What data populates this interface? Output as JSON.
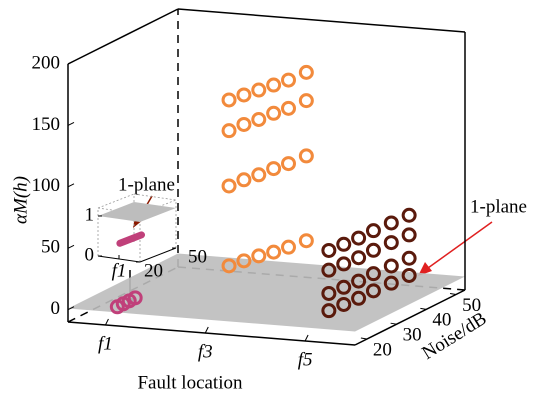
{
  "chart_data": {
    "type": "scatter3d",
    "xlabel": "Fault location",
    "ylabel": "Noise/dB",
    "zlabel": "αM(h)",
    "xlim": [
      0.25,
      6
    ],
    "xticks": [
      {
        "value": 1,
        "label": "f1"
      },
      {
        "value": 3,
        "label": "f3"
      },
      {
        "value": 5,
        "label": "f5"
      }
    ],
    "ylim": [
      16,
      53
    ],
    "yticks": [
      20,
      30,
      40,
      50
    ],
    "zlim": [
      -10,
      200
    ],
    "zticks": [
      0,
      50,
      100,
      150,
      200
    ],
    "plane": {
      "z": 1,
      "color": "#bdbdbd"
    },
    "series": [
      {
        "color": "#f28a3c",
        "x": [
          3,
          3,
          3,
          3,
          3,
          3
        ],
        "y": [
          24,
          29,
          34,
          39,
          44,
          50
        ],
        "z": [
          170,
          168,
          166,
          164,
          162,
          161
        ]
      },
      {
        "color": "#f28a3c",
        "x": [
          3,
          3,
          3,
          3,
          3,
          3
        ],
        "y": [
          24,
          29,
          34,
          39,
          44,
          50
        ],
        "z": [
          145,
          144,
          142,
          141,
          139,
          138
        ]
      },
      {
        "color": "#f28a3c",
        "x": [
          3,
          3,
          3,
          3,
          3,
          3
        ],
        "y": [
          24,
          29,
          34,
          39,
          44,
          50
        ],
        "z": [
          100,
          99,
          97,
          96,
          94,
          93
        ]
      },
      {
        "color": "#f28a3c",
        "x": [
          3,
          3,
          3,
          3,
          3,
          3
        ],
        "y": [
          24,
          29,
          34,
          39,
          44,
          50
        ],
        "z": [
          35,
          33,
          31,
          28,
          26,
          24
        ]
      },
      {
        "color": "#5a1a0c",
        "x": [
          5,
          5,
          5,
          5,
          5,
          5
        ],
        "y": [
          24,
          29,
          34,
          39,
          45,
          51
        ],
        "z": [
          54,
          53,
          52,
          52,
          51,
          50
        ]
      },
      {
        "color": "#5a1a0c",
        "x": [
          5,
          5,
          5,
          5,
          5,
          5
        ],
        "y": [
          24,
          29,
          34,
          39,
          45,
          51
        ],
        "z": [
          38,
          37,
          36,
          36,
          35,
          34
        ]
      },
      {
        "color": "#5a1a0c",
        "x": [
          5,
          5,
          5,
          5,
          5,
          5
        ],
        "y": [
          24,
          29,
          34,
          39,
          45,
          51
        ],
        "z": [
          19,
          18,
          17,
          17,
          16,
          15
        ]
      },
      {
        "color": "#5a1a0c",
        "x": [
          5,
          5,
          5,
          5,
          5,
          5
        ],
        "y": [
          24,
          29,
          34,
          39,
          45,
          51
        ],
        "z": [
          5,
          4,
          3,
          3,
          2,
          1
        ]
      },
      {
        "color": "#c0407a",
        "x": [
          1,
          1,
          1,
          1
        ],
        "y": [
          20,
          22,
          24,
          26
        ],
        "z": [
          0,
          0,
          0,
          0
        ]
      }
    ],
    "annotations": [
      "1-plane",
      "1-plane"
    ],
    "inset": {
      "zticks": [
        0,
        1
      ],
      "xticks": [
        {
          "value": 1,
          "label": "f1"
        }
      ],
      "yticks": [
        20,
        50
      ]
    }
  }
}
